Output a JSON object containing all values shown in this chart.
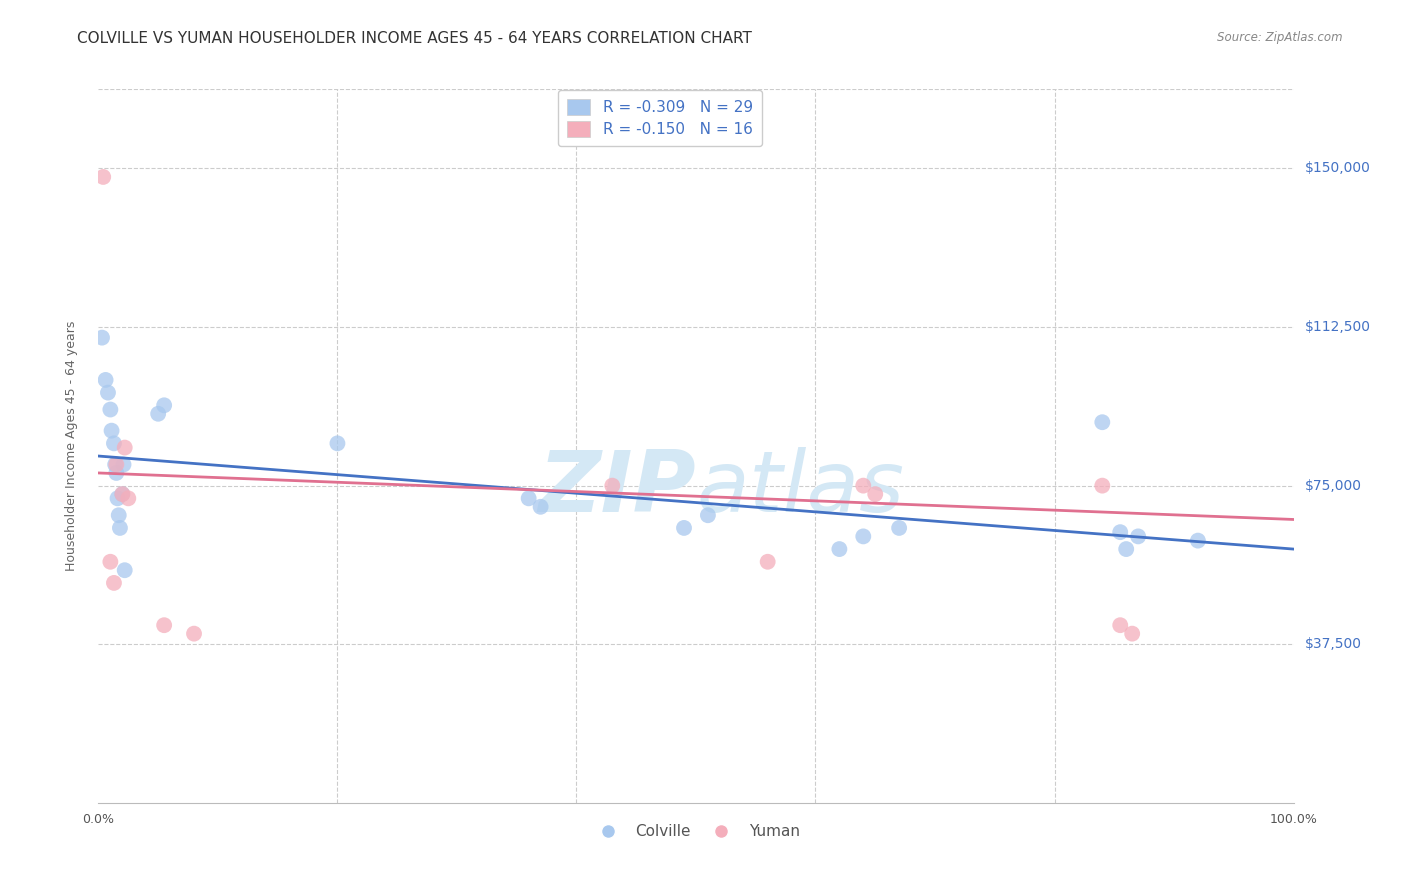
{
  "title": "COLVILLE VS YUMAN HOUSEHOLDER INCOME AGES 45 - 64 YEARS CORRELATION CHART",
  "source": "Source: ZipAtlas.com",
  "ylabel": "Householder Income Ages 45 - 64 years",
  "ytick_labels": [
    "$37,500",
    "$75,000",
    "$112,500",
    "$150,000"
  ],
  "ytick_values": [
    37500,
    75000,
    112500,
    150000
  ],
  "ylim": [
    0,
    168750
  ],
  "xlim": [
    0.0,
    1.0
  ],
  "legend_colville": "R = -0.309   N = 29",
  "legend_yuman": "R = -0.150   N = 16",
  "colville_color": "#A8C8EE",
  "yuman_color": "#F4AEBB",
  "trendline_colville_color": "#4472C4",
  "trendline_yuman_color": "#E07090",
  "colville_points_x": [
    0.003,
    0.006,
    0.008,
    0.01,
    0.011,
    0.013,
    0.014,
    0.015,
    0.016,
    0.017,
    0.018,
    0.02,
    0.021,
    0.022,
    0.05,
    0.055,
    0.2,
    0.36,
    0.37,
    0.49,
    0.51,
    0.62,
    0.64,
    0.67,
    0.84,
    0.855,
    0.86,
    0.87,
    0.92
  ],
  "colville_points_y": [
    110000,
    100000,
    97000,
    93000,
    88000,
    85000,
    80000,
    78000,
    72000,
    68000,
    65000,
    73000,
    80000,
    55000,
    92000,
    94000,
    85000,
    72000,
    70000,
    65000,
    68000,
    60000,
    63000,
    65000,
    90000,
    64000,
    60000,
    63000,
    62000
  ],
  "yuman_points_x": [
    0.004,
    0.01,
    0.013,
    0.015,
    0.02,
    0.022,
    0.025,
    0.055,
    0.08,
    0.43,
    0.56,
    0.64,
    0.65,
    0.84,
    0.855,
    0.865
  ],
  "yuman_points_y": [
    148000,
    57000,
    52000,
    80000,
    73000,
    84000,
    72000,
    42000,
    40000,
    75000,
    57000,
    75000,
    73000,
    75000,
    42000,
    40000
  ],
  "colville_trend_x": [
    0.0,
    1.0
  ],
  "colville_trend_y": [
    82000,
    60000
  ],
  "yuman_trend_x": [
    0.0,
    1.0
  ],
  "yuman_trend_y": [
    78000,
    67000
  ],
  "background_color": "#FFFFFF",
  "grid_color": "#CCCCCC",
  "watermark_zip": "ZIP",
  "watermark_atlas": "atlas",
  "watermark_color": "#D4E8F5",
  "title_fontsize": 11,
  "axis_label_fontsize": 9,
  "legend_fontsize": 11,
  "marker_size": 130
}
